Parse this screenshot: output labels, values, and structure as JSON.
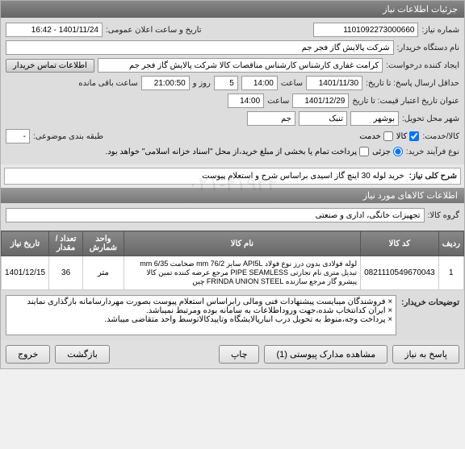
{
  "watermark": "۰۲۱-۴۱۹۳۴",
  "header": {
    "title": "جزئیات اطلاعات نیاز"
  },
  "main": {
    "reqno_label": "شماره نیاز:",
    "reqno": "1101092273000660",
    "announce_label": "تاریخ و ساعت اعلان عمومی:",
    "announce": "1401/11/24 - 16:42",
    "buyer_label": "نام دستگاه خریدار:",
    "buyer": "شرکت پالایش گاز فجر جم",
    "requester_label": "ایجاد کننده درخواست:",
    "requester": "کرامت غفاری کارشناس کارشناس مناقصات کالا شرکت پالایش گاز فجر جم",
    "contact_btn": "اطلاعات تماس خریدار",
    "deadline_label": "حداقل ارسال پاسخ: تا تاریخ:",
    "deadline_date": "1401/11/30",
    "deadline_time_lbl": "ساعت",
    "deadline_time": "14:00",
    "days": "5",
    "days_lbl": "روز و",
    "countdown": "21:00:50",
    "countdown_lbl": "ساعت باقی مانده",
    "credit_label": "عنوان تاریخ اعتبار قیمت: تا تاریخ",
    "credit_date": "1401/12/29",
    "credit_time": "14:00",
    "city_label": "شهر محل تحویل:",
    "city": "بوشهر",
    "city2": "تنبک",
    "city3": "جم",
    "buytype_label": "نوع فرآیند خرید:",
    "buytype": "جزئی",
    "pkg_label": "طبقه بندی موضوعی:",
    "pkg": "-"
  },
  "checks": {
    "goods_lbl": "کالا/خدمت:",
    "goods_opt": "کالا",
    "service_opt": "خدمت",
    "partial_lbl": "پرداخت تمام یا بخشی از مبلغ خرید،از محل \"اسناد خزانه اسلامی\" خواهد بود."
  },
  "desc": {
    "desc_label": "شرح کلی نیاز:",
    "desc": "خرید لوله 30 اینچ گاز اسیدی براساس شرح و استعلام پیوست"
  },
  "items_header": "اطلاعات کالاهای مورد نیاز",
  "group_label": "گروه کالا:",
  "group": "تجهیزات خانگی، اداری و صنعتی",
  "table": {
    "cols": [
      "ردیف",
      "کد کالا",
      "نام کالا",
      "واحد شمارش",
      "تعداد / مقدار",
      "تاریخ نیاز"
    ],
    "rows": [
      [
        "1",
        "0821110549670043",
        "لوله فولادی بدون درز نوع فولاد API5L سایز mm 76/2 ضخامت mm 6/35 تبدیل متری نام تجارتی PIPE SEAMLESS مرجع عرضه کننده تمین کالا پیشرو گاز مرجع سازنده FRINDA UNION STEEL چین",
        "متر",
        "36",
        "1401/12/15"
      ]
    ]
  },
  "buyer_notes_label": "توضیحات خریدار:",
  "buyer_notes": "× فروشندگان میبایست پیشنهادات فنی ومالی رابراساس استعلام پیوست بصورت مهردارسامانه بارگذاری نمایند\n× ایران کدانتخاب شده،جهت وروداطلاعات به سامانه بوده ومرتبط نمیباشد.\n× پرداخت وجه،منوط به تحویل درب انبارپالایشگاه وتاییدکالاتوسط واحد متقاضی میباشد.",
  "footer": {
    "respond": "پاسخ به نیاز",
    "attach": "مشاهده مدارک پیوستی (1)",
    "print": "چاپ",
    "back": "بازگشت",
    "exit": "خروج"
  }
}
